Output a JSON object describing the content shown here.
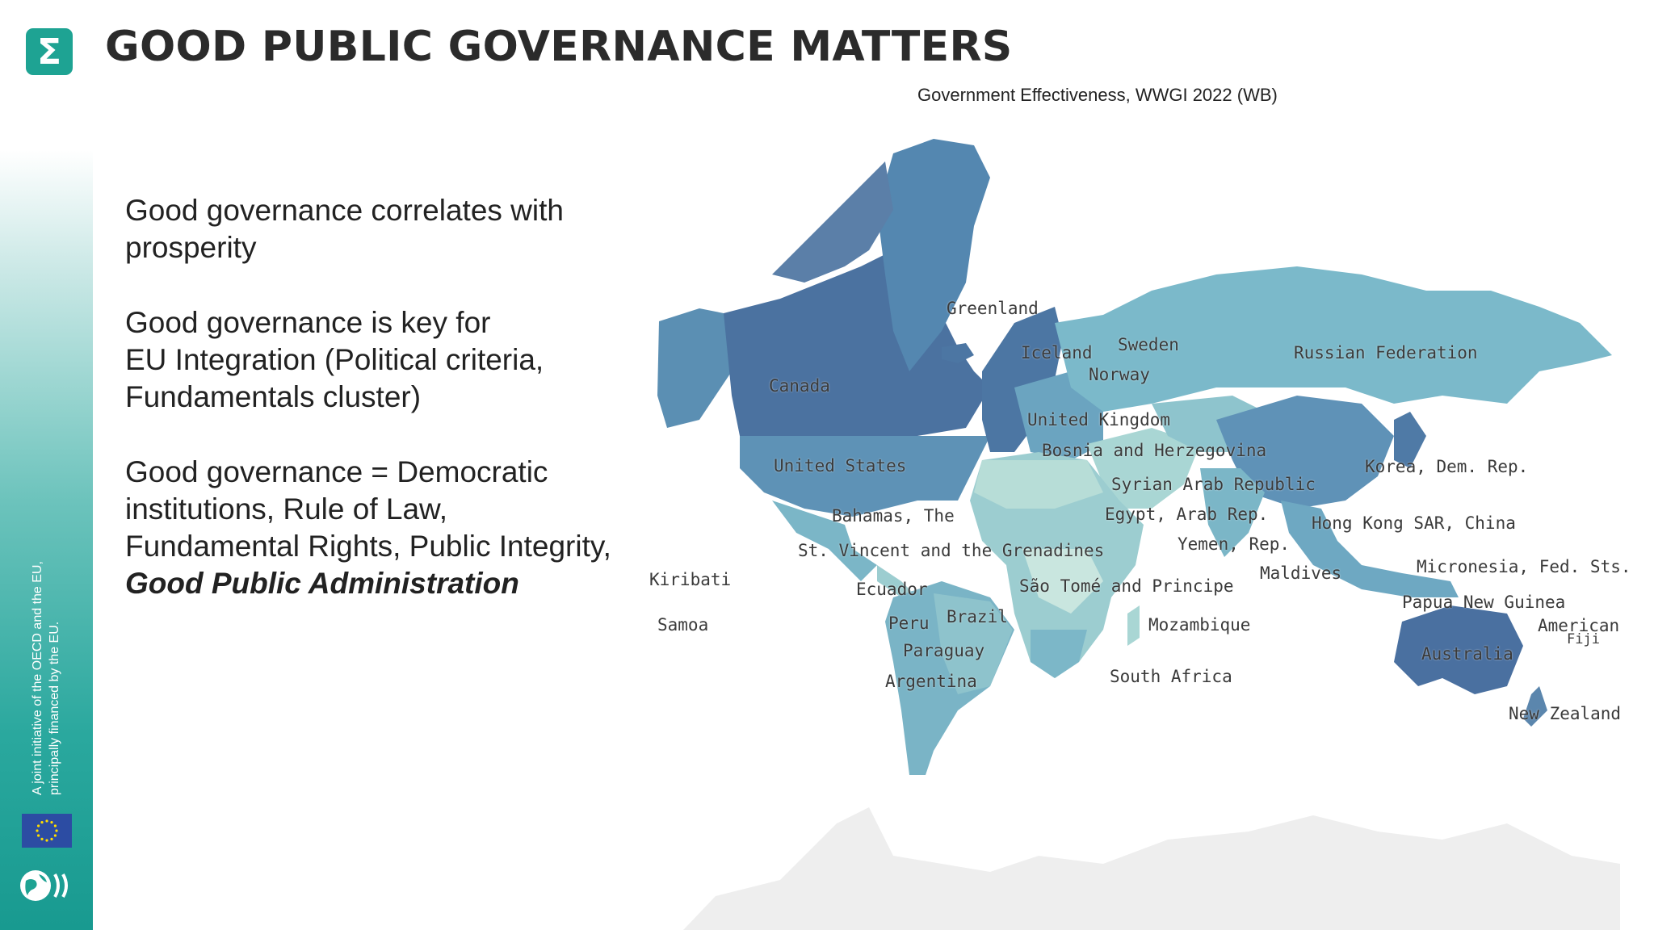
{
  "header": {
    "logo_symbol": "Σ",
    "title": "GOOD PUBLIC GOVERNANCE MATTERS"
  },
  "map": {
    "caption": "Government Effectiveness, WWGI 2022 (WB)",
    "colors": {
      "high": "#4a7aa6",
      "upper_mid": "#5e97b6",
      "mid": "#7bb6c7",
      "low_mid": "#a6d3d3",
      "low": "#cfe9e3"
    },
    "labels": {
      "greenland": "Greenland",
      "iceland": "Iceland",
      "sweden": "Sweden",
      "norway": "Norway",
      "canada": "Canada",
      "russia": "Russian Federation",
      "uk": "United Kingdom",
      "bosnia": "Bosnia and Herzegovina",
      "us": "United States",
      "korea": "Korea, Dem. Rep.",
      "syria": "Syrian Arab Republic",
      "egypt": "Egypt, Arab Rep.",
      "bahamas": "Bahamas, The",
      "hongkong": "Hong Kong SAR, China",
      "stvincent": "St. Vincent and the Grenadines",
      "yemen": "Yemen, Rep.",
      "kiribati": "Kiribati",
      "maldives": "Maldives",
      "micronesia": "Micronesia, Fed. Sts.",
      "ecuador": "Ecuador",
      "saotome": "São Tomé and Principe",
      "png": "Papua New Guinea",
      "samoa": "Samoa",
      "peru": "Peru",
      "brazil": "Brazil",
      "mozambique": "Mozambique",
      "american": "American",
      "fiji": "Fiji",
      "australia": "Australia",
      "paraguay": "Paraguay",
      "southafrica": "South Africa",
      "argentina": "Argentina",
      "newzealand": "New Zealand"
    }
  },
  "bullets": {
    "b1": "Good governance correlates with prosperity",
    "b2_line1": "Good governance is key for",
    "b2_rest": "EU Integration (Political criteria, Fundamentals cluster)",
    "b3_plain": "Good governance = Democratic institutions, Rule of Law, Fundamental Rights, Public Integrity, ",
    "b3_bold": "Good Public Administration"
  },
  "sidebar": {
    "disclaimer": "A joint initiative of the OECD and the EU, principally financed by the EU."
  }
}
